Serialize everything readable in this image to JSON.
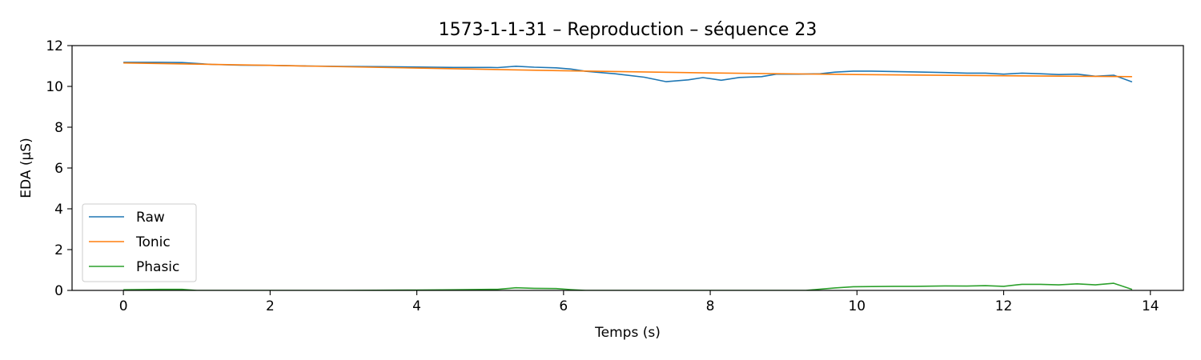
{
  "chart_data": {
    "type": "line",
    "title": "1573-1-1-31 – Reproduction – séquence 23",
    "xlabel": "Temps (s)",
    "ylabel": "EDA (µS)",
    "xlim": [
      -0.7,
      14.45
    ],
    "ylim": [
      0,
      12
    ],
    "xticks": [
      0,
      2,
      4,
      6,
      8,
      10,
      12,
      14
    ],
    "yticks": [
      0,
      2,
      4,
      6,
      8,
      10,
      12
    ],
    "grid": false,
    "legend_position": "lower-left",
    "series": [
      {
        "name": "Raw",
        "color": "#1f77b4",
        "x": [
          0,
          0.5,
          0.8,
          1.2,
          1.6,
          2.0,
          2.5,
          3.0,
          3.5,
          4.0,
          4.5,
          5.0,
          5.1,
          5.35,
          5.6,
          5.9,
          6.1,
          6.3,
          6.7,
          7.1,
          7.4,
          7.7,
          7.9,
          8.15,
          8.4,
          8.7,
          8.9,
          9.2,
          9.5,
          9.7,
          9.95,
          10.2,
          10.5,
          10.8,
          11.2,
          11.5,
          11.75,
          12.0,
          12.25,
          12.5,
          12.75,
          13.0,
          13.25,
          13.5,
          13.75
        ],
        "y": [
          11.18,
          11.18,
          11.17,
          11.08,
          11.04,
          11.03,
          11.0,
          10.98,
          10.97,
          10.95,
          10.93,
          10.93,
          10.92,
          10.99,
          10.94,
          10.91,
          10.85,
          10.74,
          10.62,
          10.45,
          10.23,
          10.32,
          10.43,
          10.3,
          10.44,
          10.48,
          10.6,
          10.6,
          10.62,
          10.7,
          10.75,
          10.75,
          10.73,
          10.71,
          10.68,
          10.65,
          10.65,
          10.6,
          10.65,
          10.62,
          10.58,
          10.6,
          10.5,
          10.55,
          10.22
        ]
      },
      {
        "name": "Tonic",
        "color": "#ff7f0e",
        "x": [
          0,
          2,
          4,
          6,
          8,
          10,
          12,
          13.75
        ],
        "y": [
          11.15,
          11.03,
          10.9,
          10.77,
          10.66,
          10.58,
          10.52,
          10.48
        ]
      },
      {
        "name": "Phasic",
        "color": "#2ca02c",
        "x": [
          0,
          0.5,
          0.8,
          1.0,
          2.0,
          3.0,
          4.0,
          4.5,
          5.0,
          5.1,
          5.35,
          5.6,
          5.9,
          6.1,
          6.3,
          7.0,
          8.0,
          9.0,
          9.3,
          9.7,
          9.95,
          10.2,
          10.5,
          10.8,
          11.2,
          11.5,
          11.75,
          12.0,
          12.25,
          12.5,
          12.75,
          13.0,
          13.25,
          13.5,
          13.75
        ],
        "y": [
          0.03,
          0.05,
          0.05,
          0.0,
          0.0,
          0.0,
          0.02,
          0.03,
          0.05,
          0.05,
          0.13,
          0.1,
          0.09,
          0.04,
          0.0,
          0.0,
          0.0,
          0.0,
          0.0,
          0.12,
          0.18,
          0.19,
          0.2,
          0.2,
          0.22,
          0.21,
          0.23,
          0.2,
          0.3,
          0.3,
          0.27,
          0.32,
          0.27,
          0.35,
          0.05
        ]
      }
    ]
  }
}
